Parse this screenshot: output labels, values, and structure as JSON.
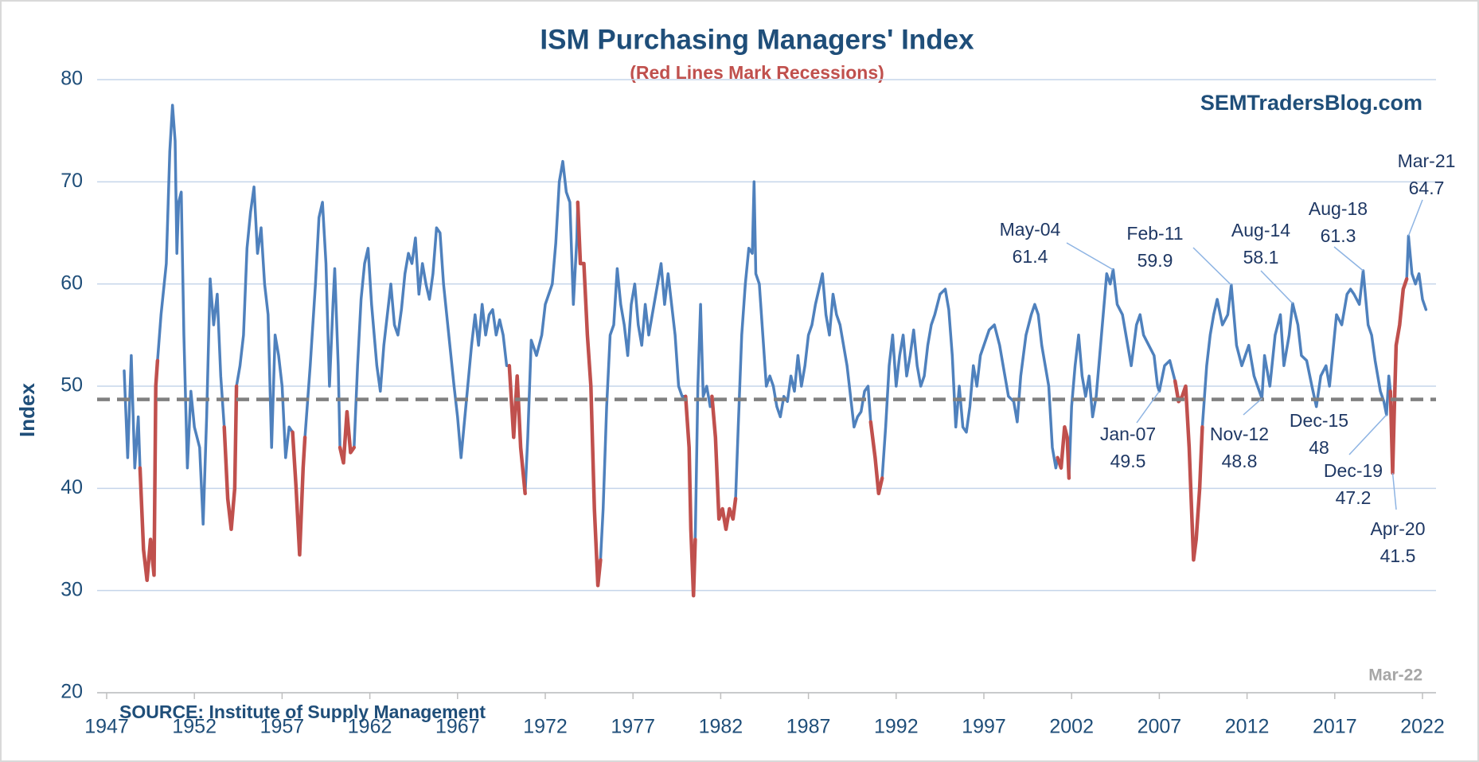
{
  "chart_data": {
    "type": "line",
    "title": "ISM Purchasing Managers' Index",
    "subtitle": "(Red Lines Mark Recessions)",
    "watermark": "SEMTradersBlog.com",
    "date_note": "Mar-22",
    "source": "SOURCE:  Institute of Supply Management",
    "y_label": "Index",
    "xlim": [
      1947,
      2022.8
    ],
    "xticks": [
      1947,
      1952,
      1957,
      1962,
      1967,
      1972,
      1977,
      1982,
      1987,
      1992,
      1997,
      2002,
      2007,
      2012,
      2017,
      2022
    ],
    "ylim": [
      20,
      80
    ],
    "yticks": [
      20,
      30,
      40,
      50,
      60,
      70,
      80
    ],
    "grid": true,
    "reference_line": 48.7,
    "reference_color": "#808080",
    "series": [
      {
        "color": "#4f81bd",
        "x": [
          1948.0,
          1948.2,
          1948.4,
          1948.6,
          1948.8,
          1948.9,
          1949.1,
          1949.3,
          1949.5,
          1949.7,
          1949.8,
          1949.9,
          1950.1,
          1950.4,
          1950.6,
          1950.75,
          1950.9,
          1951.0,
          1951.1,
          1951.25,
          1951.4,
          1951.6,
          1951.8,
          1952.0,
          1952.3,
          1952.5,
          1952.7,
          1952.9,
          1953.1,
          1953.3,
          1953.5,
          1953.7,
          1953.9,
          1954.1,
          1954.3,
          1954.4,
          1954.6,
          1954.8,
          1955.0,
          1955.2,
          1955.4,
          1955.6,
          1955.8,
          1956.0,
          1956.2,
          1956.4,
          1956.6,
          1956.8,
          1957.0,
          1957.2,
          1957.4,
          1957.6,
          1957.8,
          1958.0,
          1958.2,
          1958.3,
          1958.6,
          1958.9,
          1959.1,
          1959.3,
          1959.5,
          1959.7,
          1959.9,
          1960.0,
          1960.2,
          1960.3,
          1960.5,
          1960.7,
          1960.9,
          1961.1,
          1961.3,
          1961.5,
          1961.7,
          1961.9,
          1962.1,
          1962.4,
          1962.6,
          1962.8,
          1963.0,
          1963.2,
          1963.4,
          1963.6,
          1963.8,
          1964.0,
          1964.2,
          1964.4,
          1964.6,
          1964.8,
          1965.0,
          1965.2,
          1965.4,
          1965.6,
          1965.8,
          1966.0,
          1966.2,
          1966.5,
          1966.8,
          1967.0,
          1967.2,
          1967.5,
          1967.8,
          1968.0,
          1968.2,
          1968.4,
          1968.6,
          1968.8,
          1969.0,
          1969.2,
          1969.4,
          1969.6,
          1969.8,
          1969.95,
          1970.2,
          1970.4,
          1970.6,
          1970.85,
          1971.0,
          1971.2,
          1971.5,
          1971.8,
          1972.0,
          1972.2,
          1972.4,
          1972.6,
          1972.8,
          1973.0,
          1973.2,
          1973.4,
          1973.6,
          1973.8,
          1973.85,
          1974.0,
          1974.2,
          1974.4,
          1974.6,
          1974.8,
          1975.0,
          1975.15,
          1975.3,
          1975.5,
          1975.7,
          1975.9,
          1976.1,
          1976.3,
          1976.5,
          1976.7,
          1976.9,
          1977.1,
          1977.3,
          1977.5,
          1977.7,
          1977.9,
          1978.1,
          1978.4,
          1978.6,
          1978.8,
          1979.0,
          1979.2,
          1979.4,
          1979.6,
          1979.8,
          1980.0,
          1980.2,
          1980.3,
          1980.45,
          1980.55,
          1980.7,
          1980.85,
          1981.0,
          1981.2,
          1981.4,
          1981.5,
          1981.7,
          1981.9,
          1982.1,
          1982.3,
          1982.5,
          1982.7,
          1982.85,
          1983.0,
          1983.2,
          1983.4,
          1983.6,
          1983.8,
          1983.9,
          1984.0,
          1984.2,
          1984.4,
          1984.6,
          1984.8,
          1985.0,
          1985.2,
          1985.4,
          1985.6,
          1985.8,
          1986.0,
          1986.2,
          1986.4,
          1986.6,
          1986.8,
          1987.0,
          1987.2,
          1987.4,
          1987.6,
          1987.8,
          1988.0,
          1988.2,
          1988.4,
          1988.6,
          1988.8,
          1989.0,
          1989.2,
          1989.4,
          1989.6,
          1989.8,
          1990.0,
          1990.2,
          1990.4,
          1990.55,
          1990.8,
          1991.0,
          1991.2,
          1991.4,
          1991.6,
          1991.8,
          1992.0,
          1992.2,
          1992.4,
          1992.6,
          1992.8,
          1993.0,
          1993.2,
          1993.4,
          1993.6,
          1993.8,
          1994.0,
          1994.2,
          1994.5,
          1994.8,
          1995.0,
          1995.2,
          1995.4,
          1995.6,
          1995.8,
          1996.0,
          1996.2,
          1996.4,
          1996.6,
          1996.8,
          1997.0,
          1997.3,
          1997.6,
          1997.9,
          1998.1,
          1998.4,
          1998.7,
          1998.9,
          1999.1,
          1999.4,
          1999.7,
          1999.9,
          2000.1,
          2000.3,
          2000.5,
          2000.7,
          2000.9,
          2001.1,
          2001.2,
          2001.4,
          2001.6,
          2001.75,
          2001.85,
          2002.0,
          2002.2,
          2002.4,
          2002.6,
          2002.8,
          2003.0,
          2003.2,
          2003.4,
          2003.6,
          2003.8,
          2004.0,
          2004.2,
          2004.37,
          2004.6,
          2004.9,
          2005.1,
          2005.4,
          2005.7,
          2005.9,
          2006.1,
          2006.4,
          2006.7,
          2006.9,
          2007.0,
          2007.3,
          2007.6,
          2007.9,
          2008.1,
          2008.3,
          2008.5,
          2008.7,
          2008.95,
          2009.1,
          2009.3,
          2009.45,
          2009.7,
          2009.9,
          2010.1,
          2010.3,
          2010.6,
          2010.9,
          2011.1,
          2011.4,
          2011.7,
          2011.9,
          2012.1,
          2012.4,
          2012.6,
          2012.85,
          2013.0,
          2013.3,
          2013.6,
          2013.9,
          2014.1,
          2014.4,
          2014.6,
          2014.9,
          2015.1,
          2015.4,
          2015.7,
          2015.95,
          2016.2,
          2016.5,
          2016.7,
          2016.9,
          2017.1,
          2017.4,
          2017.7,
          2017.9,
          2018.1,
          2018.4,
          2018.62,
          2018.9,
          2019.1,
          2019.3,
          2019.6,
          2019.8,
          2019.95,
          2020.08,
          2020.17,
          2020.3,
          2020.4,
          2020.5,
          2020.7,
          2020.9,
          2021.1,
          2021.2,
          2021.4,
          2021.6,
          2021.8,
          2022.0,
          2022.2
        ],
        "values": [
          51.5,
          43,
          53,
          42,
          47,
          42,
          34,
          31,
          35,
          31.5,
          50,
          52.5,
          57,
          62,
          73,
          77.5,
          74,
          63,
          68,
          69,
          55,
          42,
          49.5,
          46,
          44,
          36.5,
          47,
          60.5,
          56,
          59,
          51,
          46,
          39,
          36,
          40,
          50,
          52,
          55,
          63.5,
          67,
          69.5,
          63,
          65.5,
          60,
          57,
          44,
          55,
          53,
          50,
          43,
          46,
          45.5,
          40,
          33.5,
          42,
          45,
          52,
          60,
          66.5,
          68,
          62,
          50,
          58,
          61.5,
          52,
          44,
          42.5,
          47.5,
          43.5,
          44,
          52,
          58.5,
          62,
          63.5,
          58,
          52,
          49.5,
          54,
          57,
          60,
          56,
          55,
          57.5,
          61,
          63,
          62,
          64.5,
          59,
          62,
          60,
          58.5,
          61,
          65.5,
          65,
          60,
          55,
          50,
          47,
          43,
          48.5,
          54,
          57,
          54,
          58,
          55,
          57,
          57.5,
          55,
          56.5,
          55,
          52,
          52,
          45,
          51,
          44,
          39.5,
          45,
          54.5,
          53,
          55,
          58,
          59,
          60,
          64,
          70,
          72,
          69,
          68,
          58,
          64.5,
          68,
          62,
          62,
          55,
          50,
          38,
          30.5,
          33,
          38,
          48,
          55,
          56,
          61.5,
          58,
          56,
          53,
          58,
          60,
          56,
          54,
          58,
          55,
          57,
          60,
          62,
          58,
          61,
          58,
          55,
          50,
          49,
          49,
          44,
          36,
          29.5,
          35,
          50,
          58,
          49,
          50,
          48,
          49,
          45,
          37,
          38,
          36,
          38,
          37,
          39,
          46,
          55,
          60,
          63.5,
          63,
          70,
          61,
          60,
          55,
          50,
          51,
          50,
          48,
          47,
          49,
          48.5,
          51,
          49.5,
          53,
          50,
          52,
          55,
          56,
          58,
          59.5,
          61,
          57,
          55,
          59,
          57,
          56,
          54,
          52,
          49,
          46,
          47,
          47.5,
          49.5,
          50,
          46.5,
          43,
          39.5,
          41,
          46,
          52,
          55,
          50,
          53,
          55,
          51,
          53,
          55.5,
          52,
          50,
          51,
          54,
          56,
          57,
          59,
          59.5,
          57.5,
          53,
          46,
          50,
          46,
          45.5,
          48,
          52,
          50,
          53,
          54,
          55.5,
          56,
          54,
          52,
          49,
          48.5,
          46.5,
          51,
          55,
          57,
          58,
          57,
          54,
          52,
          50,
          44,
          42,
          43,
          42,
          46,
          45,
          41,
          48,
          52,
          55,
          51,
          49,
          51,
          47,
          49,
          53,
          57,
          61,
          60,
          61.4,
          58,
          57,
          55,
          52,
          56,
          57,
          55,
          54,
          53,
          50,
          49.5,
          52,
          52.5,
          50.5,
          48.5,
          49,
          50,
          44,
          33,
          35,
          40,
          46,
          52,
          55,
          57,
          58.5,
          56,
          57,
          59.9,
          54,
          52,
          53,
          54,
          51,
          50,
          48.8,
          53,
          50,
          55,
          57,
          52,
          55,
          58.1,
          56,
          53,
          52.5,
          50,
          48,
          51,
          52,
          50,
          53.5,
          57,
          56,
          59,
          59.5,
          59,
          58,
          61.3,
          56,
          55,
          52.5,
          49.5,
          48.5,
          47.2,
          51,
          49.5,
          41.5,
          48,
          54,
          56,
          59.5,
          60.5,
          64.7,
          61,
          60,
          61,
          58.5,
          57.5
        ]
      },
      {
        "color": "#c0504d",
        "x": [
          1948.9,
          1949.1,
          1949.3,
          1949.5,
          1949.7,
          1949.8,
          1949.9,
          null,
          1953.7,
          1953.9,
          1954.1,
          1954.3,
          1954.4,
          null,
          1957.6,
          1957.8,
          1958.0,
          1958.2,
          1958.3,
          null,
          1960.3,
          1960.5,
          1960.7,
          1960.9,
          1961.1,
          null,
          1969.95,
          1970.2,
          1970.4,
          1970.6,
          1970.85,
          null,
          1973.85,
          1974.0,
          1974.2,
          1974.4,
          1974.6,
          1974.8,
          1975.0,
          1975.15,
          null,
          1980.0,
          1980.2,
          1980.3,
          1980.45,
          1980.55,
          null,
          1981.5,
          1981.7,
          1981.9,
          1982.1,
          1982.3,
          1982.5,
          1982.7,
          1982.85,
          null,
          1990.55,
          1990.8,
          1991.0,
          1991.2,
          null,
          2001.2,
          2001.4,
          2001.6,
          2001.75,
          2001.85,
          null,
          2007.9,
          2008.1,
          2008.3,
          2008.5,
          2008.7,
          2008.95,
          2009.1,
          2009.3,
          2009.45,
          null,
          2020.17,
          2020.3,
          2020.4,
          2020.5,
          2020.7,
          2020.9,
          2021.1
        ],
        "values": [
          42,
          34,
          31,
          35,
          31.5,
          50,
          52.5,
          null,
          46,
          39,
          36,
          40,
          50,
          null,
          45.5,
          40,
          33.5,
          42,
          45,
          null,
          44,
          42.5,
          47.5,
          43.5,
          44,
          null,
          52,
          45,
          51,
          44,
          39.5,
          null,
          68,
          62,
          62,
          55,
          50,
          38,
          30.5,
          33,
          null,
          49,
          44,
          36,
          29.5,
          35,
          null,
          49,
          45,
          37,
          38,
          36,
          38,
          37,
          39,
          null,
          46.5,
          43,
          39.5,
          41,
          null,
          43,
          42,
          46,
          45,
          41,
          null,
          50.5,
          48.5,
          49,
          50,
          44,
          33,
          35,
          40,
          46,
          null,
          49.5,
          41.5,
          48,
          54,
          56,
          59.5,
          60.5
        ]
      }
    ],
    "annotations": [
      {
        "label": "May-04",
        "value": 61.4,
        "x": 2004.37
      },
      {
        "label": "Feb-11",
        "value": 59.9,
        "x": 2011.1
      },
      {
        "label": "Aug-14",
        "value": 58.1,
        "x": 2014.6
      },
      {
        "label": "Aug-18",
        "value": 61.3,
        "x": 2018.62
      },
      {
        "label": "Mar-21",
        "value": 64.7,
        "x": 2021.2
      },
      {
        "label": "Jan-07",
        "value": 49.5,
        "x": 2007.0
      },
      {
        "label": "Nov-12",
        "value": 48.8,
        "x": 2012.85
      },
      {
        "label": "Dec-15",
        "value": 48,
        "x": 2015.95
      },
      {
        "label": "Dec-19",
        "value": 47.2,
        "x": 2019.95
      },
      {
        "label": "Apr-20",
        "value": 41.5,
        "x": 2020.3
      }
    ]
  }
}
